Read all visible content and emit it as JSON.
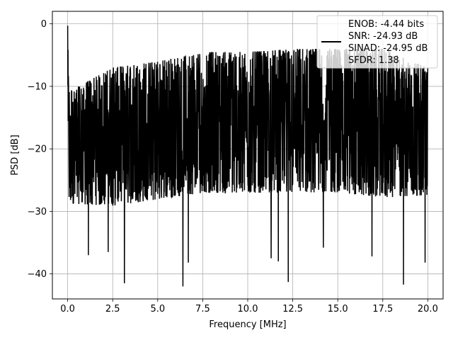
{
  "chart_data": {
    "type": "line",
    "title": "",
    "xlabel": "Frequency [MHz]",
    "ylabel": "PSD [dB]",
    "xlim": [
      -0.85,
      20.85
    ],
    "ylim": [
      -44,
      2
    ],
    "x_ticks": [
      0.0,
      2.5,
      5.0,
      7.5,
      10.0,
      12.5,
      15.0,
      17.5,
      20.0
    ],
    "x_tick_labels": [
      "0.0",
      "2.5",
      "5.0",
      "7.5",
      "10.0",
      "12.5",
      "15.0",
      "17.5",
      "20.0"
    ],
    "y_ticks": [
      0,
      -10,
      -20,
      -30,
      -40
    ],
    "y_tick_labels": [
      "0",
      "−10",
      "−20",
      "−30",
      "−40"
    ],
    "grid": true,
    "legend_position": "top-right",
    "series": [
      {
        "color": "#000000",
        "x_range": [
          0,
          20
        ],
        "n_points": 2000,
        "envelope": {
          "x": [
            0.0,
            0.05,
            0.3,
            2.5,
            5.0,
            7.5,
            10.0,
            12.5,
            15.0,
            17.5,
            20.0
          ],
          "upper": [
            -0.3,
            -10,
            -10.5,
            -7,
            -6,
            -4.5,
            -4.5,
            -4,
            -4,
            -4,
            -7
          ],
          "lower": [
            -18,
            -32,
            -32,
            -33,
            -32,
            -31,
            -31,
            -31,
            -31,
            -32,
            -31
          ]
        },
        "deep_notches": [
          {
            "x": 3.15,
            "y": -41.5
          },
          {
            "x": 6.4,
            "y": -42.0
          },
          {
            "x": 12.25,
            "y": -41.3
          },
          {
            "x": 18.65,
            "y": -41.7
          },
          {
            "x": 11.3,
            "y": -37.5
          },
          {
            "x": 11.7,
            "y": -38.0
          },
          {
            "x": 6.7,
            "y": -38.2
          },
          {
            "x": 1.15,
            "y": -37.0
          },
          {
            "x": 16.9,
            "y": -37.2
          },
          {
            "x": 14.2,
            "y": -35.8
          },
          {
            "x": 19.85,
            "y": -38.2
          },
          {
            "x": 2.25,
            "y": -36.5
          }
        ]
      }
    ],
    "legend": {
      "lines": [
        "ENOB: -4.44 bits",
        "SNR: -24.93 dB",
        "SINAD: -24.95 dB",
        "SFDR: 1.38"
      ]
    }
  }
}
